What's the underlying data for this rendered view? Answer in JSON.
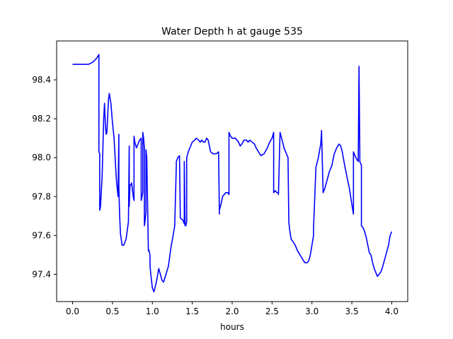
{
  "chart_data": {
    "type": "line",
    "title": "Water Depth h at gauge 535",
    "xlabel": "hours",
    "ylabel": "",
    "xlim": [
      -0.2,
      4.2
    ],
    "ylim": [
      97.26,
      98.6
    ],
    "xticks": [
      0.0,
      0.5,
      1.0,
      1.5,
      2.0,
      2.5,
      3.0,
      3.5,
      4.0
    ],
    "xtick_labels": [
      "0.0",
      "0.5",
      "1.0",
      "1.5",
      "2.0",
      "2.5",
      "3.0",
      "3.5",
      "4.0"
    ],
    "yticks": [
      97.4,
      97.6,
      97.8,
      98.0,
      98.2,
      98.4
    ],
    "ytick_labels": [
      "97.4",
      "97.6",
      "97.8",
      "98.0",
      "98.2",
      "98.4"
    ],
    "grid": false,
    "legend": "none",
    "series": [
      {
        "color": "#0000ff",
        "x": [
          0.0,
          0.1,
          0.2,
          0.25,
          0.3,
          0.33,
          0.33,
          0.34,
          0.34,
          0.35,
          0.37,
          0.39,
          0.4,
          0.41,
          0.42,
          0.43,
          0.45,
          0.46,
          0.48,
          0.5,
          0.52,
          0.54,
          0.55,
          0.57,
          0.58,
          0.58,
          0.59,
          0.6,
          0.62,
          0.64,
          0.67,
          0.7,
          0.71,
          0.71,
          0.72,
          0.73,
          0.74,
          0.76,
          0.77,
          0.77,
          0.78,
          0.8,
          0.82,
          0.84,
          0.86,
          0.86,
          0.87,
          0.88,
          0.88,
          0.89,
          0.9,
          0.9,
          0.91,
          0.92,
          0.92,
          0.93,
          0.95,
          0.95,
          0.96,
          0.97,
          0.97,
          0.98,
          1.0,
          1.02,
          1.05,
          1.08,
          1.1,
          1.12,
          1.14,
          1.17,
          1.2,
          1.23,
          1.26,
          1.28,
          1.3,
          1.3,
          1.32,
          1.34,
          1.35,
          1.35,
          1.38,
          1.4,
          1.4,
          1.41,
          1.42,
          1.43,
          1.43,
          1.45,
          1.48,
          1.5,
          1.53,
          1.55,
          1.58,
          1.6,
          1.62,
          1.64,
          1.66,
          1.68,
          1.7,
          1.73,
          1.76,
          1.8,
          1.83,
          1.84,
          1.84,
          1.86,
          1.88,
          1.9,
          1.92,
          1.94,
          1.95,
          1.96,
          1.96,
          1.98,
          2.0,
          2.02,
          2.04,
          2.06,
          2.08,
          2.1,
          2.12,
          2.15,
          2.18,
          2.2,
          2.22,
          2.25,
          2.28,
          2.3,
          2.33,
          2.36,
          2.4,
          2.44,
          2.47,
          2.5,
          2.52,
          2.52,
          2.54,
          2.56,
          2.58,
          2.58,
          2.6,
          2.62,
          2.65,
          2.68,
          2.7,
          2.71,
          2.72,
          2.74,
          2.76,
          2.79,
          2.82,
          2.85,
          2.88,
          2.91,
          2.94,
          2.96,
          2.98,
          3.0,
          3.02,
          3.02,
          3.05,
          3.08,
          3.11,
          3.12,
          3.12,
          3.14,
          3.16,
          3.18,
          3.2,
          3.22,
          3.25,
          3.28,
          3.31,
          3.34,
          3.36,
          3.38,
          3.41,
          3.44,
          3.47,
          3.5,
          3.52,
          3.52,
          3.55,
          3.58,
          3.59,
          3.59,
          3.6,
          3.6,
          3.62,
          3.62,
          3.64,
          3.66,
          3.68,
          3.7,
          3.72,
          3.74,
          3.76,
          3.78,
          3.8,
          3.82,
          3.84,
          3.86,
          3.88,
          3.9,
          3.92,
          3.94,
          3.96,
          3.98,
          4.0
        ],
        "y": [
          98.48,
          98.48,
          98.48,
          98.49,
          98.51,
          98.53,
          98.03,
          98.02,
          97.73,
          97.75,
          97.9,
          98.2,
          98.28,
          98.18,
          98.12,
          98.13,
          98.3,
          98.33,
          98.28,
          98.18,
          98.1,
          97.95,
          97.88,
          97.8,
          98.12,
          97.85,
          97.7,
          97.61,
          97.55,
          97.55,
          97.58,
          97.67,
          98.06,
          97.75,
          97.86,
          97.86,
          97.87,
          97.8,
          97.78,
          98.11,
          98.08,
          98.05,
          98.07,
          98.09,
          98.1,
          97.78,
          97.8,
          97.82,
          98.13,
          98.1,
          98.05,
          97.65,
          97.68,
          97.72,
          98.04,
          98.0,
          97.52,
          97.53,
          97.52,
          97.5,
          97.45,
          97.4,
          97.33,
          97.31,
          97.36,
          97.43,
          97.4,
          97.37,
          97.36,
          97.4,
          97.44,
          97.53,
          97.6,
          97.65,
          97.96,
          97.98,
          98.0,
          98.01,
          97.7,
          97.69,
          97.68,
          97.66,
          97.98,
          97.65,
          97.65,
          97.67,
          98.0,
          98.03,
          98.06,
          98.08,
          98.09,
          98.1,
          98.09,
          98.08,
          98.09,
          98.08,
          98.08,
          98.1,
          98.09,
          98.03,
          98.02,
          98.02,
          98.03,
          97.71,
          97.73,
          97.76,
          97.8,
          97.81,
          97.82,
          97.82,
          97.82,
          97.81,
          98.13,
          98.11,
          98.1,
          98.1,
          98.1,
          98.09,
          98.08,
          98.06,
          98.07,
          98.09,
          98.09,
          98.08,
          98.09,
          98.08,
          98.07,
          98.05,
          98.03,
          98.01,
          98.02,
          98.05,
          98.08,
          98.1,
          98.13,
          97.82,
          97.83,
          97.82,
          97.82,
          97.81,
          98.13,
          98.1,
          98.05,
          98.02,
          98.0,
          97.67,
          97.63,
          97.58,
          97.57,
          97.55,
          97.52,
          97.5,
          97.48,
          97.46,
          97.46,
          97.47,
          97.5,
          97.55,
          97.6,
          97.64,
          97.95,
          98.0,
          98.07,
          98.13,
          98.14,
          97.82,
          97.84,
          97.87,
          97.9,
          97.93,
          97.96,
          98.02,
          98.05,
          98.07,
          98.06,
          98.03,
          97.96,
          97.9,
          97.84,
          97.76,
          97.71,
          98.03,
          98.0,
          97.98,
          98.47,
          98.46,
          98.02,
          97.98,
          97.96,
          97.65,
          97.64,
          97.62,
          97.59,
          97.55,
          97.51,
          97.5,
          97.46,
          97.43,
          97.41,
          97.39,
          97.4,
          97.41,
          97.43,
          97.46,
          97.49,
          97.52,
          97.55,
          97.6,
          97.62
        ]
      }
    ]
  }
}
